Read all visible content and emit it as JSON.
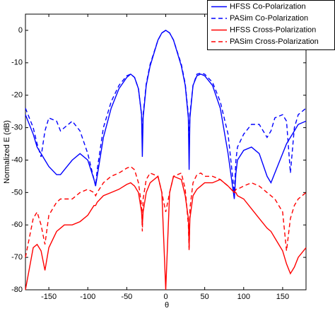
{
  "chart_data": {
    "type": "line",
    "x_label": "θ",
    "y_label": "Normalized E (dB)",
    "x": [
      -180,
      -170,
      -165,
      -160,
      -155,
      -150,
      -140,
      -135,
      -130,
      -120,
      -110,
      -100,
      -92,
      -90,
      -88,
      -80,
      -70,
      -60,
      -50,
      -45,
      -40,
      -35,
      -31,
      -30,
      -29,
      -25,
      -20,
      -10,
      -5,
      0,
      5,
      10,
      20,
      25,
      29,
      30,
      31,
      35,
      40,
      45,
      50,
      60,
      70,
      80,
      88,
      90,
      92,
      100,
      110,
      120,
      130,
      135,
      140,
      150,
      155,
      160,
      165,
      170,
      180
    ],
    "series": [
      {
        "name": "HFSS Co-Polarization",
        "color": "#0000ff",
        "linestyle": "solid",
        "values": [
          -26,
          -32,
          -36,
          -38,
          -40,
          -42,
          -44.5,
          -44.5,
          -43,
          -40,
          -38,
          -40,
          -46,
          -48,
          -45,
          -33,
          -24,
          -18,
          -14.5,
          -13.5,
          -14.5,
          -18,
          -26,
          -39,
          -27,
          -17,
          -11,
          -3,
          -0.8,
          0,
          -0.8,
          -3,
          -11,
          -17,
          -27,
          -43,
          -27,
          -17,
          -14,
          -13.5,
          -14,
          -17,
          -24,
          -38,
          -52,
          -44,
          -40,
          -37,
          -36,
          -38,
          -45,
          -47,
          -44,
          -38,
          -35,
          -33,
          -31,
          -29,
          -28
        ]
      },
      {
        "name": "PASim Co-Polarization",
        "color": "#0000ff",
        "linestyle": "dashed",
        "values": [
          -24,
          -30,
          -35,
          -39,
          -31,
          -27,
          -28,
          -31,
          -30,
          -28,
          -31,
          -38,
          -46,
          -48,
          -43,
          -30,
          -22,
          -17,
          -14,
          -13.5,
          -14.5,
          -18,
          -26,
          -35,
          -26,
          -16.5,
          -10.5,
          -3,
          -0.8,
          0,
          -0.8,
          -3,
          -10.5,
          -16.5,
          -26,
          -38,
          -26,
          -17,
          -13.5,
          -13.2,
          -13.5,
          -16,
          -22,
          -32,
          -50,
          -40,
          -36,
          -32,
          -29,
          -29,
          -33,
          -31,
          -27,
          -26,
          -28,
          -44,
          -30,
          -26,
          -24
        ]
      },
      {
        "name": "HFSS Cross-Polarization",
        "color": "#ff0000",
        "linestyle": "solid",
        "values": [
          -80,
          -67,
          -66,
          -68,
          -74,
          -67,
          -62,
          -61,
          -60,
          -60,
          -59,
          -57,
          -54,
          -54,
          -53,
          -51,
          -50,
          -49,
          -47.5,
          -47,
          -48,
          -50,
          -56,
          -60,
          -56,
          -50,
          -47,
          -45,
          -50,
          -80,
          -50,
          -45,
          -46,
          -51,
          -58,
          -67,
          -58,
          -51,
          -49,
          -48,
          -47,
          -47,
          -46,
          -48,
          -50,
          -50,
          -51,
          -52,
          -55,
          -58,
          -61,
          -62,
          -64,
          -68,
          -72,
          -75,
          -73,
          -70,
          -67
        ]
      },
      {
        "name": "PASim Cross-Polarization",
        "color": "#ff0000",
        "linestyle": "dashed",
        "values": [
          -70,
          -58,
          -56,
          -60,
          -66,
          -57,
          -53,
          -52,
          -52,
          -52,
          -50,
          -49,
          -50,
          -51,
          -50,
          -47,
          -45,
          -44,
          -42.5,
          -42,
          -43,
          -47,
          -54,
          -62,
          -52,
          -46,
          -44,
          -45,
          -50,
          -56,
          -50,
          -45,
          -44,
          -49,
          -60,
          -68,
          -55,
          -47,
          -44.5,
          -44,
          -45,
          -45,
          -46,
          -48,
          -50,
          -49,
          -49,
          -48,
          -47,
          -48,
          -50,
          -51,
          -52,
          -56,
          -68,
          -58,
          -54,
          -52,
          -50
        ]
      }
    ],
    "xlim": [
      -180,
      180
    ],
    "ylim": [
      -80,
      5
    ],
    "xticks": [
      -150,
      -100,
      -50,
      0,
      50,
      100,
      150
    ],
    "yticks": [
      0,
      -10,
      -20,
      -30,
      -40,
      -50,
      -60,
      -70,
      -80
    ],
    "legend": "upper right",
    "grid": false
  }
}
